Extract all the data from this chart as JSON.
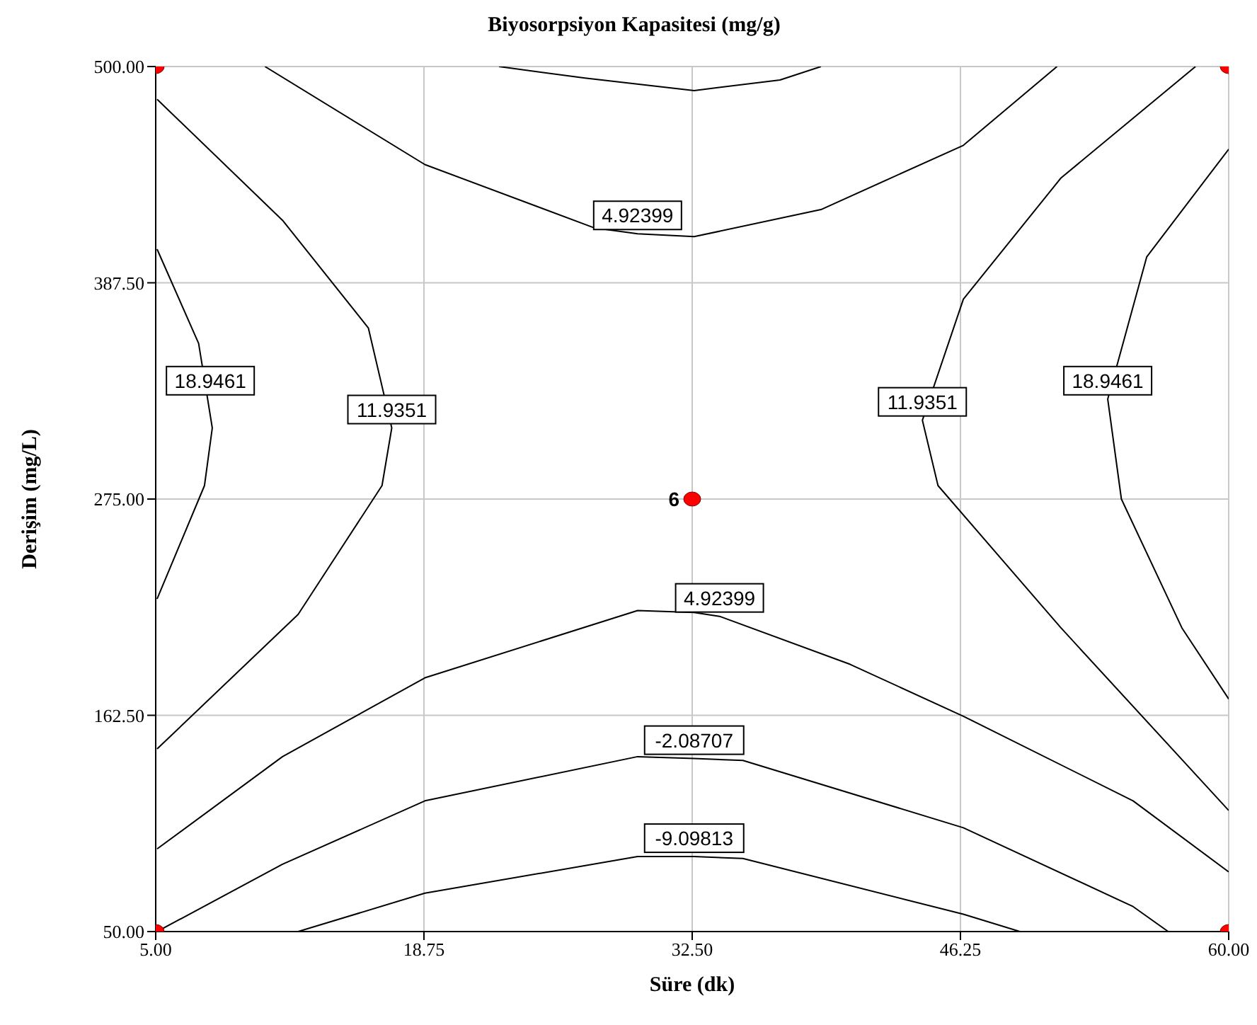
{
  "chart_data": {
    "type": "line",
    "title": "Biyosorpsiyon Kapasitesi (mg/g)",
    "xlabel": "Süre (dk)",
    "ylabel": "Derişim (mg/L)",
    "xlim": [
      5,
      60
    ],
    "xticks": [
      {
        "value": 5,
        "label": "5.00"
      },
      {
        "value": 18.75,
        "label": "18.75"
      },
      {
        "value": 32.5,
        "label": "32.50"
      },
      {
        "value": 46.25,
        "label": "46.25"
      },
      {
        "value": 60,
        "label": "60.00"
      }
    ],
    "ylim": [
      50,
      500
    ],
    "yticks": [
      {
        "value": 50,
        "label": "50.00"
      },
      {
        "value": 162.5,
        "label": "162.50"
      },
      {
        "value": 275,
        "label": "275.00"
      },
      {
        "value": 387.5,
        "label": "387.50"
      },
      {
        "value": 500,
        "label": "500.00"
      }
    ],
    "grid": true,
    "line_style": "solid",
    "series": [
      {
        "color": "#000000",
        "marker": "none",
        "x": [
          22.6,
          27,
          32.6,
          37,
          39.1
        ],
        "values": [
          500,
          494,
          487.5,
          493,
          500
        ]
      },
      {
        "color": "#000000",
        "marker": "none",
        "x": [
          10.6,
          18.8,
          27.5,
          29.7,
          32.6,
          39.1,
          46.4,
          51.2
        ],
        "values": [
          500,
          449,
          416,
          413,
          411.5,
          425.6,
          459,
          500
        ]
      },
      {
        "color": "#000000",
        "marker": "none",
        "x": [
          5.07,
          7.2,
          7.9,
          7.5,
          5.07
        ],
        "values": [
          405,
          356,
          312,
          282,
          223
        ]
      },
      {
        "color": "#000000",
        "marker": "none",
        "x": [
          5.07,
          11.5,
          15.9,
          17.1,
          16.6,
          12.3,
          5.07
        ],
        "values": [
          483,
          420,
          364,
          312,
          282,
          215,
          145
        ]
      },
      {
        "color": "#000000",
        "marker": "none",
        "x": [
          58.3,
          51.4,
          46.4,
          44.3,
          45.1,
          51.4,
          60
        ],
        "values": [
          500,
          442,
          379,
          316,
          282,
          208,
          113
        ]
      },
      {
        "color": "#000000",
        "marker": "none",
        "x": [
          60,
          55.8,
          53.8,
          54.5,
          57.6,
          60
        ],
        "values": [
          457,
          401,
          327,
          275,
          208,
          171
        ]
      },
      {
        "color": "#000000",
        "marker": "none",
        "x": [
          5.07,
          11.5,
          18.8,
          29.7,
          32.6,
          33.9,
          40.6,
          46.4,
          55.1,
          60
        ],
        "values": [
          93,
          141,
          182,
          217,
          216,
          214,
          189,
          162,
          118,
          81
        ]
      },
      {
        "color": "#000000",
        "marker": "none",
        "x": [
          5.07,
          11.5,
          18.8,
          29.7,
          32.6,
          35.1,
          46.4,
          55.1,
          56.9
        ],
        "values": [
          50,
          85,
          118,
          141,
          140,
          139,
          104,
          63,
          50
        ]
      },
      {
        "color": "#000000",
        "marker": "none",
        "x": [
          12.3,
          18.8,
          29.7,
          32.6,
          35.1,
          46.4,
          49.3
        ],
        "values": [
          50,
          70,
          89,
          89,
          88,
          59,
          50
        ]
      },
      {
        "type": "scatter",
        "color": "#ff0000",
        "marker": "circle",
        "x": [
          5,
          5,
          60,
          60,
          32.5
        ],
        "values": [
          500,
          50,
          500,
          50,
          275
        ]
      }
    ],
    "annotations": [
      {
        "text": "4.92399",
        "x": 29.7,
        "y": 413
      },
      {
        "text": "18.9461",
        "x": 7.8,
        "y": 327
      },
      {
        "text": "11.9351",
        "x": 17.1,
        "y": 312
      },
      {
        "text": "11.9351",
        "x": 44.3,
        "y": 316
      },
      {
        "text": "18.9461",
        "x": 53.8,
        "y": 327
      },
      {
        "text": "4.92399",
        "x": 33.9,
        "y": 214
      },
      {
        "text": "-2.08707",
        "x": 32.6,
        "y": 140
      },
      {
        "text": "-9.09813",
        "x": 32.6,
        "y": 89
      },
      {
        "text": "6",
        "x": 32.5,
        "y": 275
      }
    ]
  }
}
